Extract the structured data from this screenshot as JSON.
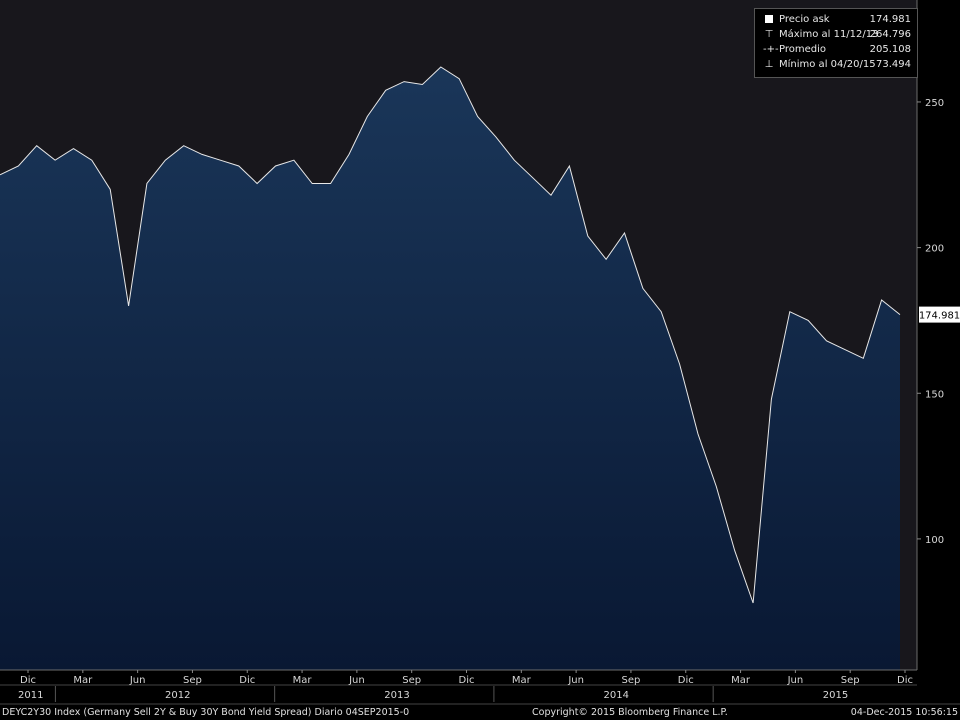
{
  "colors": {
    "background": "#000000",
    "plot_top": "#18171c",
    "area_top": "#1a3659",
    "area_bottom": "#0a1a36",
    "line": "#e8e8e8",
    "axis": "#6c6c6c"
  },
  "legend": {
    "items": [
      {
        "icon": "square-icon",
        "label": "Precio ask",
        "value": "174.981"
      },
      {
        "icon": "max-marker-icon",
        "label": "Máximo al 11/12/13",
        "value": "264.796"
      },
      {
        "icon": "avg-marker-icon",
        "label": "Promedio",
        "value": "205.108"
      },
      {
        "icon": "min-marker-icon",
        "label": "Mínimo al 04/20/15",
        "value": "73.494"
      }
    ]
  },
  "last_price_label": "174.981",
  "footer": {
    "left": "DEYC2Y30 Index (Germany Sell 2Y & Buy 30Y Bond Yield Spread)  Diario 04SEP2015-0",
    "center": "Copyright© 2015 Bloomberg Finance L.P.",
    "right": "04-Dec-2015 10:56:15"
  },
  "chart_data": {
    "type": "area",
    "title": "",
    "xlabel": "",
    "ylabel": "",
    "ylim": [
      55,
      285
    ],
    "yticks": [
      100,
      150,
      200,
      250
    ],
    "x_month_labels": [
      "Dic",
      "Mar",
      "Jun",
      "Sep",
      "Dic",
      "Mar",
      "Jun",
      "Sep",
      "Dic",
      "Mar",
      "Jun",
      "Sep",
      "Dic",
      "Mar",
      "Jun",
      "Sep",
      "Dic"
    ],
    "x_year_labels": [
      "2011",
      "2012",
      "2013",
      "2014",
      "2015"
    ],
    "x_start": "2011-12",
    "x_end": "2015-12",
    "series": [
      {
        "name": "Precio ask",
        "x": [
          "2011-11",
          "2011-12",
          "2012-01",
          "2012-02",
          "2012-03",
          "2012-04",
          "2012-05",
          "2012-06",
          "2012-07",
          "2012-08",
          "2012-09",
          "2012-10",
          "2012-11",
          "2012-12",
          "2013-01",
          "2013-02",
          "2013-03",
          "2013-04",
          "2013-05",
          "2013-06",
          "2013-07",
          "2013-08",
          "2013-09",
          "2013-10",
          "2013-11",
          "2013-12",
          "2014-01",
          "2014-02",
          "2014-03",
          "2014-04",
          "2014-05",
          "2014-06",
          "2014-07",
          "2014-08",
          "2014-09",
          "2014-10",
          "2014-11",
          "2014-12",
          "2015-01",
          "2015-02",
          "2015-03",
          "2015-04",
          "2015-05",
          "2015-06",
          "2015-07",
          "2015-08",
          "2015-09",
          "2015-10",
          "2015-11",
          "2015-12"
        ],
        "values": [
          225,
          228,
          235,
          230,
          234,
          230,
          220,
          180,
          222,
          230,
          235,
          232,
          230,
          228,
          222,
          228,
          230,
          222,
          222,
          232,
          245,
          254,
          257,
          256,
          262,
          258,
          245,
          238,
          230,
          224,
          218,
          228,
          204,
          196,
          205,
          186,
          178,
          160,
          136,
          118,
          96,
          78,
          148,
          178,
          175,
          168,
          165,
          162,
          182,
          177
        ]
      }
    ],
    "summary": {
      "last": 174.981,
      "max": 264.796,
      "max_date": "11/12/13",
      "avg": 205.108,
      "min": 73.494,
      "min_date": "04/20/15"
    },
    "grid": false,
    "legend_position": "top-right"
  }
}
